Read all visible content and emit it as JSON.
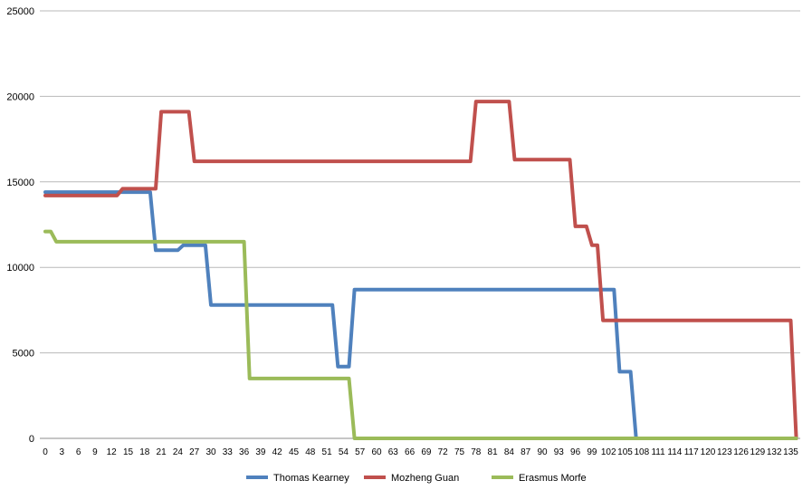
{
  "chart_data": {
    "type": "line",
    "title": "",
    "xlabel": "",
    "ylabel": "",
    "ylim": [
      0,
      25000
    ],
    "yticks": [
      "0",
      "5000",
      "10000",
      "15000",
      "20000",
      "25000"
    ],
    "xticks": [
      "0",
      "3",
      "6",
      "9",
      "12",
      "15",
      "18",
      "21",
      "24",
      "27",
      "30",
      "33",
      "36",
      "39",
      "42",
      "45",
      "48",
      "51",
      "54",
      "57",
      "60",
      "63",
      "66",
      "69",
      "72",
      "75",
      "78",
      "81",
      "84",
      "87",
      "90",
      "93",
      "96",
      "99",
      "102",
      "105",
      "108",
      "111",
      "114",
      "117",
      "120",
      "123",
      "126",
      "129",
      "132",
      "135"
    ],
    "xlim": [
      0,
      136
    ],
    "grid": "horizontal",
    "legend": "bottom",
    "series": [
      {
        "name": "Thomas Kearney",
        "color": "#4f81bd",
        "points": [
          [
            0,
            14400
          ],
          [
            19,
            14400
          ],
          [
            20,
            11000
          ],
          [
            24,
            11000
          ],
          [
            25,
            11300
          ],
          [
            29,
            11300
          ],
          [
            30,
            7800
          ],
          [
            52,
            7800
          ],
          [
            53,
            4200
          ],
          [
            55,
            4200
          ],
          [
            56,
            8700
          ],
          [
            103,
            8700
          ],
          [
            104,
            3900
          ],
          [
            106,
            3900
          ],
          [
            107,
            0
          ],
          [
            136,
            0
          ]
        ]
      },
      {
        "name": "Mozheng Guan",
        "color": "#c0504d",
        "points": [
          [
            0,
            14200
          ],
          [
            13,
            14200
          ],
          [
            14,
            14600
          ],
          [
            20,
            14600
          ],
          [
            21,
            19100
          ],
          [
            26,
            19100
          ],
          [
            27,
            16200
          ],
          [
            77,
            16200
          ],
          [
            78,
            19700
          ],
          [
            84,
            19700
          ],
          [
            85,
            16300
          ],
          [
            95,
            16300
          ],
          [
            96,
            12400
          ],
          [
            98,
            12400
          ],
          [
            99,
            11300
          ],
          [
            100,
            11300
          ],
          [
            101,
            6900
          ],
          [
            135,
            6900
          ],
          [
            136,
            0
          ]
        ]
      },
      {
        "name": "Erasmus Morfe",
        "color": "#9bbb59",
        "points": [
          [
            0,
            12100
          ],
          [
            1,
            12100
          ],
          [
            2,
            11500
          ],
          [
            36,
            11500
          ],
          [
            37,
            3500
          ],
          [
            55,
            3500
          ],
          [
            56,
            0
          ],
          [
            136,
            0
          ]
        ]
      }
    ]
  }
}
